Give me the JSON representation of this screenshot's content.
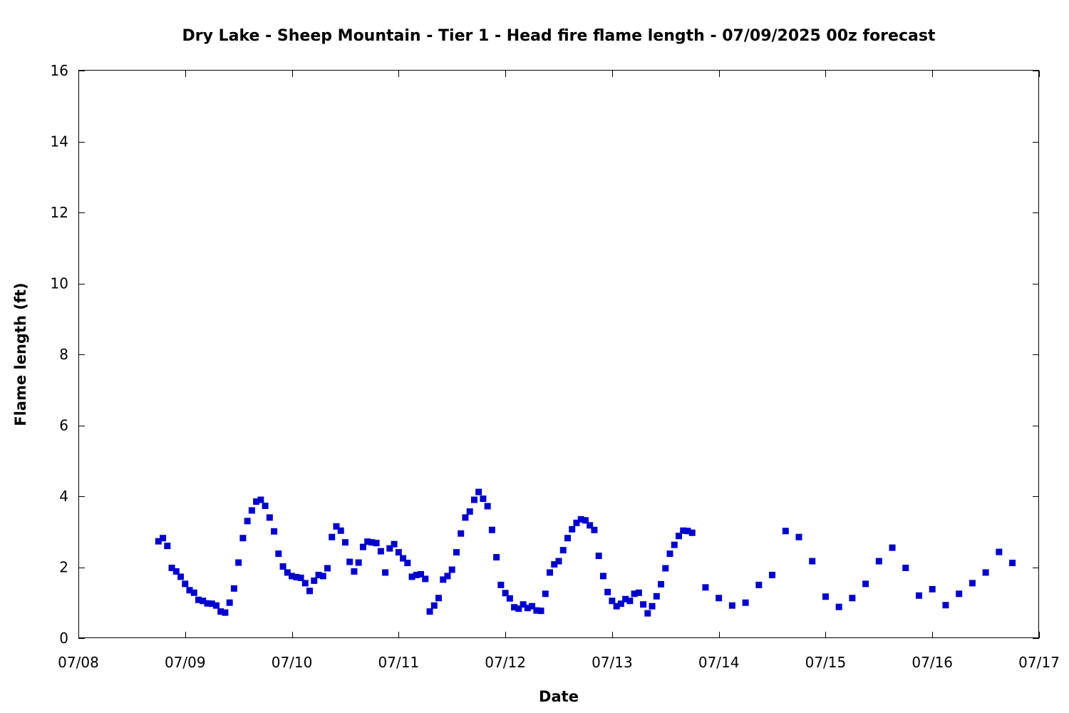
{
  "chart_data": {
    "type": "scatter",
    "title": "Dry Lake - Sheep Mountain - Tier 1 - Head fire flame length - 07/09/2025 00z forecast",
    "xlabel": "Date",
    "ylabel": "Flame length (ft)",
    "x_axis": "date",
    "x_start": "07/08",
    "x_tick_labels": [
      "07/08",
      "07/09",
      "07/10",
      "07/11",
      "07/12",
      "07/13",
      "07/14",
      "07/15",
      "07/16",
      "07/17"
    ],
    "y_ticks": [
      0,
      2,
      4,
      6,
      8,
      10,
      12,
      14,
      16
    ],
    "ylim": [
      0,
      16
    ],
    "grid": false,
    "marker": "square",
    "color": "#0000CC",
    "series": [
      {
        "points": [
          [
            "07/08 18:00",
            2.73
          ],
          [
            "07/08 19:00",
            2.82
          ],
          [
            "07/08 20:00",
            2.6
          ],
          [
            "07/08 21:00",
            1.98
          ],
          [
            "07/08 22:00",
            1.88
          ],
          [
            "07/08 23:00",
            1.73
          ],
          [
            "07/09 00:00",
            1.53
          ],
          [
            "07/09 01:00",
            1.35
          ],
          [
            "07/09 02:00",
            1.28
          ],
          [
            "07/09 03:00",
            1.08
          ],
          [
            "07/09 04:00",
            1.05
          ],
          [
            "07/09 05:00",
            0.98
          ],
          [
            "07/09 06:00",
            0.97
          ],
          [
            "07/09 07:00",
            0.92
          ],
          [
            "07/09 08:00",
            0.75
          ],
          [
            "07/09 09:00",
            0.72
          ],
          [
            "07/09 10:00",
            1.0
          ],
          [
            "07/09 11:00",
            1.4
          ],
          [
            "07/09 12:00",
            2.13
          ],
          [
            "07/09 13:00",
            2.82
          ],
          [
            "07/09 14:00",
            3.3
          ],
          [
            "07/09 15:00",
            3.6
          ],
          [
            "07/09 16:00",
            3.85
          ],
          [
            "07/09 17:00",
            3.9
          ],
          [
            "07/09 18:00",
            3.73
          ],
          [
            "07/09 19:00",
            3.4
          ],
          [
            "07/09 20:00",
            3.01
          ],
          [
            "07/09 21:00",
            2.38
          ],
          [
            "07/09 22:00",
            2.02
          ],
          [
            "07/09 23:00",
            1.85
          ],
          [
            "07/10 00:00",
            1.75
          ],
          [
            "07/10 01:00",
            1.72
          ],
          [
            "07/10 02:00",
            1.7
          ],
          [
            "07/10 03:00",
            1.55
          ],
          [
            "07/10 04:00",
            1.33
          ],
          [
            "07/10 05:00",
            1.62
          ],
          [
            "07/10 06:00",
            1.78
          ],
          [
            "07/10 07:00",
            1.75
          ],
          [
            "07/10 08:00",
            1.97
          ],
          [
            "07/10 09:00",
            2.85
          ],
          [
            "07/10 10:00",
            3.15
          ],
          [
            "07/10 11:00",
            3.03
          ],
          [
            "07/10 12:00",
            2.7
          ],
          [
            "07/10 13:00",
            2.15
          ],
          [
            "07/10 14:00",
            1.88
          ],
          [
            "07/10 15:00",
            2.13
          ],
          [
            "07/10 16:00",
            2.57
          ],
          [
            "07/10 17:00",
            2.72
          ],
          [
            "07/10 18:00",
            2.7
          ],
          [
            "07/10 19:00",
            2.68
          ],
          [
            "07/10 20:00",
            2.45
          ],
          [
            "07/10 21:00",
            1.85
          ],
          [
            "07/10 22:00",
            2.53
          ],
          [
            "07/10 23:00",
            2.65
          ],
          [
            "07/11 00:00",
            2.42
          ],
          [
            "07/11 01:00",
            2.25
          ],
          [
            "07/11 02:00",
            2.12
          ],
          [
            "07/11 03:00",
            1.73
          ],
          [
            "07/11 04:00",
            1.78
          ],
          [
            "07/11 05:00",
            1.8
          ],
          [
            "07/11 06:00",
            1.67
          ],
          [
            "07/11 07:00",
            0.75
          ],
          [
            "07/11 08:00",
            0.92
          ],
          [
            "07/11 09:00",
            1.13
          ],
          [
            "07/11 10:00",
            1.65
          ],
          [
            "07/11 11:00",
            1.75
          ],
          [
            "07/11 12:00",
            1.93
          ],
          [
            "07/11 13:00",
            2.42
          ],
          [
            "07/11 14:00",
            2.95
          ],
          [
            "07/11 15:00",
            3.4
          ],
          [
            "07/11 16:00",
            3.57
          ],
          [
            "07/11 17:00",
            3.9
          ],
          [
            "07/11 18:00",
            4.12
          ],
          [
            "07/11 19:00",
            3.93
          ],
          [
            "07/11 20:00",
            3.72
          ],
          [
            "07/11 21:00",
            3.05
          ],
          [
            "07/11 22:00",
            2.28
          ],
          [
            "07/11 23:00",
            1.5
          ],
          [
            "07/12 00:00",
            1.27
          ],
          [
            "07/12 01:00",
            1.12
          ],
          [
            "07/12 02:00",
            0.87
          ],
          [
            "07/12 03:00",
            0.83
          ],
          [
            "07/12 04:00",
            0.95
          ],
          [
            "07/12 05:00",
            0.85
          ],
          [
            "07/12 06:00",
            0.9
          ],
          [
            "07/12 07:00",
            0.78
          ],
          [
            "07/12 08:00",
            0.77
          ],
          [
            "07/12 09:00",
            1.25
          ],
          [
            "07/12 10:00",
            1.85
          ],
          [
            "07/12 11:00",
            2.08
          ],
          [
            "07/12 12:00",
            2.17
          ],
          [
            "07/12 13:00",
            2.48
          ],
          [
            "07/12 14:00",
            2.82
          ],
          [
            "07/12 15:00",
            3.07
          ],
          [
            "07/12 16:00",
            3.25
          ],
          [
            "07/12 17:00",
            3.35
          ],
          [
            "07/12 18:00",
            3.32
          ],
          [
            "07/12 19:00",
            3.18
          ],
          [
            "07/12 20:00",
            3.05
          ],
          [
            "07/12 21:00",
            2.32
          ],
          [
            "07/12 22:00",
            1.75
          ],
          [
            "07/12 23:00",
            1.3
          ],
          [
            "07/13 00:00",
            1.05
          ],
          [
            "07/13 01:00",
            0.9
          ],
          [
            "07/13 02:00",
            0.97
          ],
          [
            "07/13 03:00",
            1.1
          ],
          [
            "07/13 04:00",
            1.05
          ],
          [
            "07/13 05:00",
            1.25
          ],
          [
            "07/13 06:00",
            1.28
          ],
          [
            "07/13 07:00",
            0.95
          ],
          [
            "07/13 08:00",
            0.7
          ],
          [
            "07/13 09:00",
            0.9
          ],
          [
            "07/13 10:00",
            1.18
          ],
          [
            "07/13 11:00",
            1.52
          ],
          [
            "07/13 12:00",
            1.97
          ],
          [
            "07/13 13:00",
            2.38
          ],
          [
            "07/13 14:00",
            2.63
          ],
          [
            "07/13 15:00",
            2.88
          ],
          [
            "07/13 16:00",
            3.03
          ],
          [
            "07/13 17:00",
            3.02
          ],
          [
            "07/13 18:00",
            2.97
          ],
          [
            "07/13 21:00",
            1.43
          ],
          [
            "07/14 00:00",
            1.13
          ],
          [
            "07/14 03:00",
            0.92
          ],
          [
            "07/14 06:00",
            1.0
          ],
          [
            "07/14 09:00",
            1.5
          ],
          [
            "07/14 12:00",
            1.78
          ],
          [
            "07/14 15:00",
            3.02
          ],
          [
            "07/14 18:00",
            2.85
          ],
          [
            "07/14 21:00",
            2.17
          ],
          [
            "07/15 00:00",
            1.17
          ],
          [
            "07/15 03:00",
            0.88
          ],
          [
            "07/15 06:00",
            1.13
          ],
          [
            "07/15 09:00",
            1.53
          ],
          [
            "07/15 12:00",
            2.17
          ],
          [
            "07/15 15:00",
            2.55
          ],
          [
            "07/15 18:00",
            1.98
          ],
          [
            "07/15 21:00",
            1.2
          ],
          [
            "07/16 00:00",
            1.38
          ],
          [
            "07/16 03:00",
            0.93
          ],
          [
            "07/16 06:00",
            1.25
          ],
          [
            "07/16 09:00",
            1.55
          ],
          [
            "07/16 12:00",
            1.85
          ],
          [
            "07/16 15:00",
            2.43
          ],
          [
            "07/16 18:00",
            2.12
          ]
        ]
      }
    ]
  }
}
